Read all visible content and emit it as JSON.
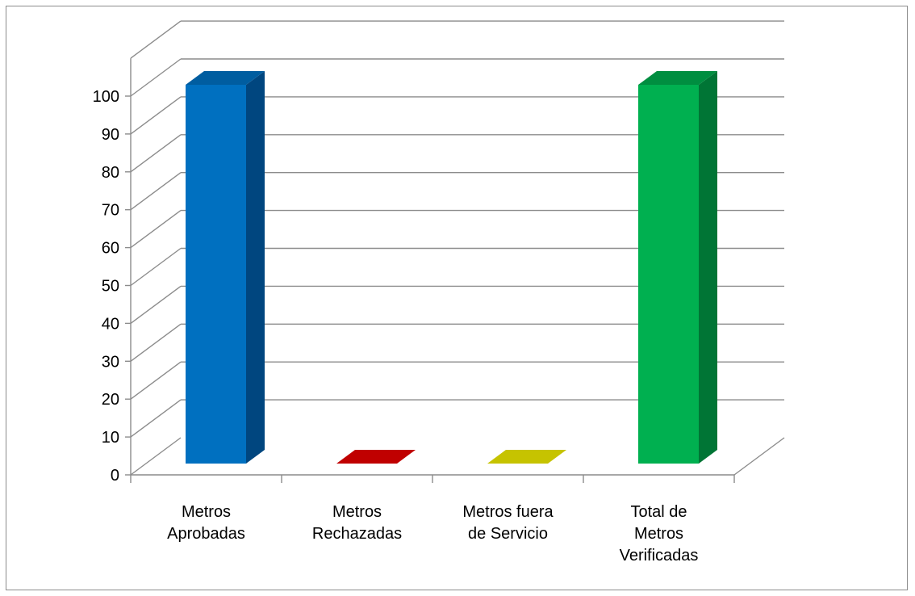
{
  "chart_data": {
    "type": "bar",
    "style": "3d-column",
    "title": "",
    "xlabel": "",
    "ylabel": "",
    "ylim": [
      0,
      100
    ],
    "yticks": [
      "0",
      "10",
      "20",
      "30",
      "40",
      "50",
      "60",
      "70",
      "80",
      "90",
      "100"
    ],
    "grid": true,
    "legend": "none",
    "categories": [
      [
        "Metros",
        "Aprobadas"
      ],
      [
        "Metros",
        "Rechazadas"
      ],
      [
        "Metros fuera",
        "de Servicio"
      ],
      [
        "Total de",
        "Metros",
        "Verificadas"
      ]
    ],
    "values": [
      100,
      0,
      0,
      100
    ],
    "colors": [
      {
        "front": "#0070C0",
        "side": "#00467F",
        "top": "#005DA0"
      },
      {
        "front": "#C00000",
        "side": "#8A0000",
        "top": "#C00000"
      },
      {
        "front": "#C6C300",
        "side": "#9A9700",
        "top": "#C6C300"
      },
      {
        "front": "#00B050",
        "side": "#007535",
        "top": "#008E40"
      }
    ]
  }
}
